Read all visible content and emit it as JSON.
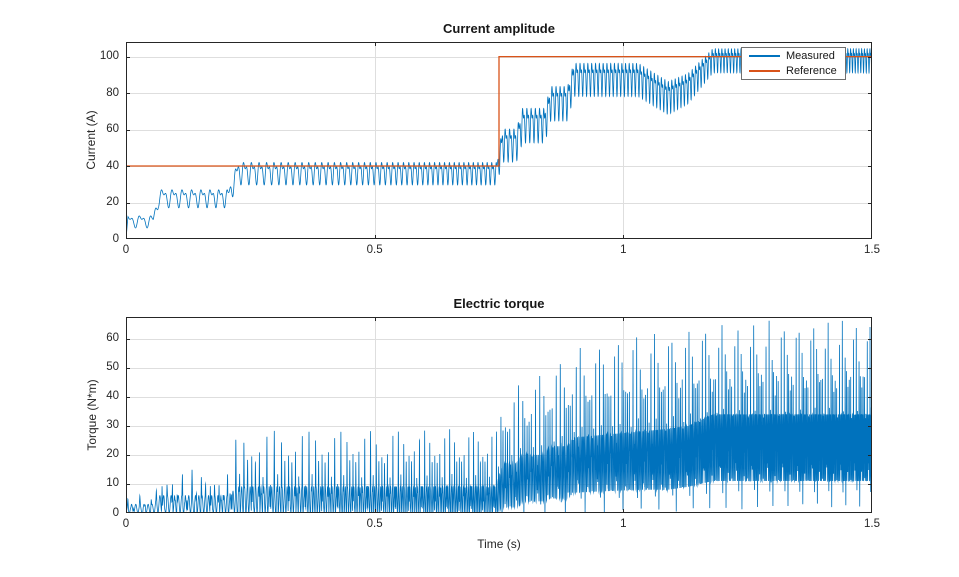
{
  "figure": {
    "background": "#ffffff",
    "axis_color": "#262626",
    "grid_color": "#dedede",
    "title_color": "#171717"
  },
  "chart_data": [
    {
      "type": "line",
      "title": "Current amplitude",
      "xlabel": "",
      "ylabel": "Current (A)",
      "xlim": [
        0,
        1.5
      ],
      "ylim": [
        0,
        108
      ],
      "grid": true,
      "xticks": [
        {
          "v": 0,
          "label": "0"
        },
        {
          "v": 0.5,
          "label": "0.5"
        },
        {
          "v": 1,
          "label": "1"
        },
        {
          "v": 1.5,
          "label": "1.5"
        }
      ],
      "yticks": [
        {
          "v": 0,
          "label": "0"
        },
        {
          "v": 20,
          "label": "20"
        },
        {
          "v": 40,
          "label": "40"
        },
        {
          "v": 60,
          "label": "60"
        },
        {
          "v": 80,
          "label": "80"
        },
        {
          "v": 100,
          "label": "100"
        }
      ],
      "legend": {
        "position": "northeast",
        "entries": [
          {
            "label": "Measured",
            "color": "#0072BD"
          },
          {
            "label": "Reference",
            "color": "#D95319"
          }
        ]
      },
      "series": [
        {
          "name": "Measured",
          "color": "#0072BD",
          "kind": "oscillating",
          "description": "High-frequency oscillating current magnitude rising in steps: ~10 A until 0.06 s, ~23 A until 0.21 s, ~37 A until 0.75 s, then staircase 53/64/76/89 A, brief dip near 1.1 s, settling oscillating about 99 A (91-107 A) after 1.18 s",
          "envelope": {
            "t": [
              0,
              0.055,
              0.065,
              0.205,
              0.225,
              0.745,
              0.757,
              0.785,
              0.797,
              0.842,
              0.854,
              0.888,
              0.9,
              1.03,
              1.09,
              1.13,
              1.18,
              1.5
            ],
            "center": [
              10,
              10,
              23,
              23,
              37,
              37,
              53,
              53,
              64,
              64,
              76,
              76,
              89,
              89,
              79,
              84,
              99,
              99
            ],
            "amp": [
              4,
              4,
              6,
              6,
              7.5,
              7.5,
              11,
              11,
              11.5,
              11.5,
              11.5,
              11.5,
              11,
              11,
              11,
              10,
              8,
              8
            ]
          },
          "ripple_freq_hz": {
            "f0": 40,
            "slope": 95
          }
        },
        {
          "name": "Reference",
          "color": "#D95319",
          "kind": "step",
          "description": "Reference current: 40 A from 0 to 0.75 s, step to 100 A from 0.75 to 1.5 s",
          "points": {
            "t": [
              0,
              0.75,
              0.75,
              1.5
            ],
            "y": [
              40,
              40,
              100,
              100
            ]
          }
        }
      ]
    },
    {
      "type": "line",
      "title": "Electric torque",
      "xlabel": "Time (s)",
      "ylabel": "Torque (N*m)",
      "xlim": [
        0,
        1.5
      ],
      "ylim": [
        0,
        67.5
      ],
      "grid": true,
      "xticks": [
        {
          "v": 0,
          "label": "0"
        },
        {
          "v": 0.5,
          "label": "0.5"
        },
        {
          "v": 1,
          "label": "1"
        },
        {
          "v": 1.5,
          "label": "1.5"
        }
      ],
      "yticks": [
        {
          "v": 0,
          "label": "0"
        },
        {
          "v": 10,
          "label": "10"
        },
        {
          "v": 20,
          "label": "20"
        },
        {
          "v": 30,
          "label": "30"
        },
        {
          "v": 40,
          "label": "40"
        },
        {
          "v": 50,
          "label": "50"
        },
        {
          "v": 60,
          "label": "60"
        }
      ],
      "series": [
        {
          "name": "Electric torque",
          "color": "#0072BD",
          "kind": "spiky",
          "description": "Pulsating torque with periodic commutation spikes; spike peaks grow ~6, 15, 29 N*m up to 0.75 s, then 44-58 N*m, reaching ~67 N*m after 1.18 s while the dense ripple band rises from 0-3 to ~11-34 N*m",
          "envelope": {
            "t": [
              0,
              0.055,
              0.065,
              0.205,
              0.225,
              0.745,
              0.757,
              0.785,
              0.797,
              0.842,
              0.854,
              0.888,
              0.9,
              1.03,
              1.09,
              1.13,
              1.18,
              1.5
            ],
            "peak": [
              6,
              6,
              15,
              15,
              29,
              29,
              44,
              44,
              48,
              48,
              54,
              54,
              58,
              62,
              63,
              64,
              67,
              67
            ],
            "band_hi": [
              3,
              3,
              6,
              6,
              9,
              9,
              17,
              17,
              20,
              20,
              23,
              23,
              26,
              28,
              29,
              30,
              34,
              34
            ],
            "band_lo": [
              0,
              0,
              0,
              0,
              0,
              0,
              2,
              2,
              4,
              4,
              5,
              5,
              7,
              8,
              8,
              9,
              11,
              11
            ]
          },
          "ripple_freq_hz": {
            "f0": 40,
            "slope": 95
          }
        }
      ]
    }
  ]
}
